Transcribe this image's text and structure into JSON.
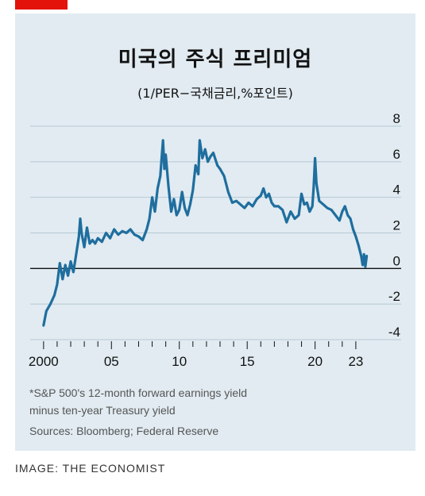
{
  "header": {
    "title": "미국의 주식 프리미엄",
    "subtitle": "(1/PER−국채금리,%포인트)"
  },
  "footer": {
    "note_line1": "*S&P 500's 12-month forward earnings yield",
    "note_line2": "minus ten-year Treasury yield",
    "sources": "Sources: Bloomberg; Federal Reserve",
    "credit": "IMAGE: THE ECONOMIST"
  },
  "colors": {
    "panel_bg": "#e1ebf1",
    "line": "#1f6e9e",
    "grid": "#b7c9d4",
    "brand_tag": "#e3120b"
  },
  "chart_data": {
    "type": "line",
    "title": "미국의 주식 프리미엄",
    "subtitle": "(1/PER−국채금리,%포인트)",
    "xlabel": "",
    "ylabel": "",
    "ylim": [
      -4,
      8
    ],
    "xlim": [
      1999.6,
      2024.0
    ],
    "y_ticks": [
      8,
      6,
      4,
      2,
      0,
      -2,
      -4
    ],
    "y_tick_labels": [
      "8",
      "6",
      "4",
      "2",
      "0",
      "-2",
      "-4"
    ],
    "x_tick_labels": [
      {
        "x": 2000,
        "label": "2000"
      },
      {
        "x": 2005,
        "label": "05"
      },
      {
        "x": 2010,
        "label": "10"
      },
      {
        "x": 2015,
        "label": "15"
      },
      {
        "x": 2020,
        "label": "20"
      },
      {
        "x": 2023,
        "label": "23"
      }
    ],
    "grid": "horizontal",
    "series": [
      {
        "values": [
          {
            "x": 2000.0,
            "y": -3.2
          },
          {
            "x": 2000.2,
            "y": -2.4
          },
          {
            "x": 2000.5,
            "y": -2.0
          },
          {
            "x": 2000.8,
            "y": -1.5
          },
          {
            "x": 2001.0,
            "y": -0.9
          },
          {
            "x": 2001.2,
            "y": 0.3
          },
          {
            "x": 2001.4,
            "y": -0.6
          },
          {
            "x": 2001.6,
            "y": 0.2
          },
          {
            "x": 2001.8,
            "y": -0.4
          },
          {
            "x": 2002.0,
            "y": 0.4
          },
          {
            "x": 2002.2,
            "y": -0.2
          },
          {
            "x": 2002.4,
            "y": 0.8
          },
          {
            "x": 2002.6,
            "y": 1.8
          },
          {
            "x": 2002.7,
            "y": 2.8
          },
          {
            "x": 2002.8,
            "y": 2.0
          },
          {
            "x": 2003.0,
            "y": 1.2
          },
          {
            "x": 2003.2,
            "y": 2.3
          },
          {
            "x": 2003.4,
            "y": 1.4
          },
          {
            "x": 2003.6,
            "y": 1.6
          },
          {
            "x": 2003.8,
            "y": 1.4
          },
          {
            "x": 2004.0,
            "y": 1.7
          },
          {
            "x": 2004.3,
            "y": 1.5
          },
          {
            "x": 2004.6,
            "y": 2.0
          },
          {
            "x": 2004.9,
            "y": 1.7
          },
          {
            "x": 2005.2,
            "y": 2.2
          },
          {
            "x": 2005.5,
            "y": 1.9
          },
          {
            "x": 2005.8,
            "y": 2.1
          },
          {
            "x": 2006.1,
            "y": 2.0
          },
          {
            "x": 2006.4,
            "y": 2.2
          },
          {
            "x": 2006.7,
            "y": 1.9
          },
          {
            "x": 2007.0,
            "y": 1.8
          },
          {
            "x": 2007.3,
            "y": 1.6
          },
          {
            "x": 2007.6,
            "y": 2.2
          },
          {
            "x": 2007.8,
            "y": 2.8
          },
          {
            "x": 2008.0,
            "y": 4.0
          },
          {
            "x": 2008.2,
            "y": 3.2
          },
          {
            "x": 2008.4,
            "y": 4.5
          },
          {
            "x": 2008.6,
            "y": 5.2
          },
          {
            "x": 2008.8,
            "y": 7.2
          },
          {
            "x": 2008.9,
            "y": 5.6
          },
          {
            "x": 2009.0,
            "y": 6.4
          },
          {
            "x": 2009.2,
            "y": 4.6
          },
          {
            "x": 2009.4,
            "y": 3.2
          },
          {
            "x": 2009.6,
            "y": 3.9
          },
          {
            "x": 2009.8,
            "y": 3.0
          },
          {
            "x": 2010.0,
            "y": 3.3
          },
          {
            "x": 2010.2,
            "y": 4.3
          },
          {
            "x": 2010.4,
            "y": 3.4
          },
          {
            "x": 2010.6,
            "y": 3.0
          },
          {
            "x": 2010.8,
            "y": 3.6
          },
          {
            "x": 2011.0,
            "y": 4.4
          },
          {
            "x": 2011.2,
            "y": 5.8
          },
          {
            "x": 2011.4,
            "y": 5.3
          },
          {
            "x": 2011.5,
            "y": 7.2
          },
          {
            "x": 2011.7,
            "y": 6.2
          },
          {
            "x": 2011.9,
            "y": 6.7
          },
          {
            "x": 2012.1,
            "y": 6.0
          },
          {
            "x": 2012.3,
            "y": 6.3
          },
          {
            "x": 2012.5,
            "y": 6.5
          },
          {
            "x": 2012.8,
            "y": 5.8
          },
          {
            "x": 2013.0,
            "y": 5.6
          },
          {
            "x": 2013.3,
            "y": 5.2
          },
          {
            "x": 2013.6,
            "y": 4.3
          },
          {
            "x": 2013.9,
            "y": 3.7
          },
          {
            "x": 2014.2,
            "y": 3.8
          },
          {
            "x": 2014.5,
            "y": 3.6
          },
          {
            "x": 2014.8,
            "y": 3.4
          },
          {
            "x": 2015.1,
            "y": 3.7
          },
          {
            "x": 2015.4,
            "y": 3.5
          },
          {
            "x": 2015.7,
            "y": 3.9
          },
          {
            "x": 2016.0,
            "y": 4.1
          },
          {
            "x": 2016.2,
            "y": 4.5
          },
          {
            "x": 2016.4,
            "y": 4.0
          },
          {
            "x": 2016.6,
            "y": 4.2
          },
          {
            "x": 2016.8,
            "y": 3.7
          },
          {
            "x": 2017.0,
            "y": 3.5
          },
          {
            "x": 2017.3,
            "y": 3.5
          },
          {
            "x": 2017.6,
            "y": 3.3
          },
          {
            "x": 2017.9,
            "y": 2.6
          },
          {
            "x": 2018.2,
            "y": 3.2
          },
          {
            "x": 2018.5,
            "y": 2.8
          },
          {
            "x": 2018.8,
            "y": 3.0
          },
          {
            "x": 2019.0,
            "y": 4.2
          },
          {
            "x": 2019.2,
            "y": 3.6
          },
          {
            "x": 2019.4,
            "y": 3.7
          },
          {
            "x": 2019.6,
            "y": 3.2
          },
          {
            "x": 2019.8,
            "y": 3.5
          },
          {
            "x": 2019.9,
            "y": 4.6
          },
          {
            "x": 2020.0,
            "y": 6.2
          },
          {
            "x": 2020.1,
            "y": 4.8
          },
          {
            "x": 2020.3,
            "y": 3.8
          },
          {
            "x": 2020.6,
            "y": 3.6
          },
          {
            "x": 2020.9,
            "y": 3.4
          },
          {
            "x": 2021.2,
            "y": 3.3
          },
          {
            "x": 2021.5,
            "y": 3.0
          },
          {
            "x": 2021.8,
            "y": 2.7
          },
          {
            "x": 2022.0,
            "y": 3.2
          },
          {
            "x": 2022.2,
            "y": 3.5
          },
          {
            "x": 2022.4,
            "y": 3.0
          },
          {
            "x": 2022.6,
            "y": 2.8
          },
          {
            "x": 2022.8,
            "y": 2.2
          },
          {
            "x": 2023.0,
            "y": 1.8
          },
          {
            "x": 2023.2,
            "y": 1.3
          },
          {
            "x": 2023.4,
            "y": 0.7
          },
          {
            "x": 2023.5,
            "y": 0.2
          },
          {
            "x": 2023.6,
            "y": 0.8
          },
          {
            "x": 2023.7,
            "y": 0.1
          },
          {
            "x": 2023.8,
            "y": 0.7
          }
        ]
      }
    ]
  }
}
